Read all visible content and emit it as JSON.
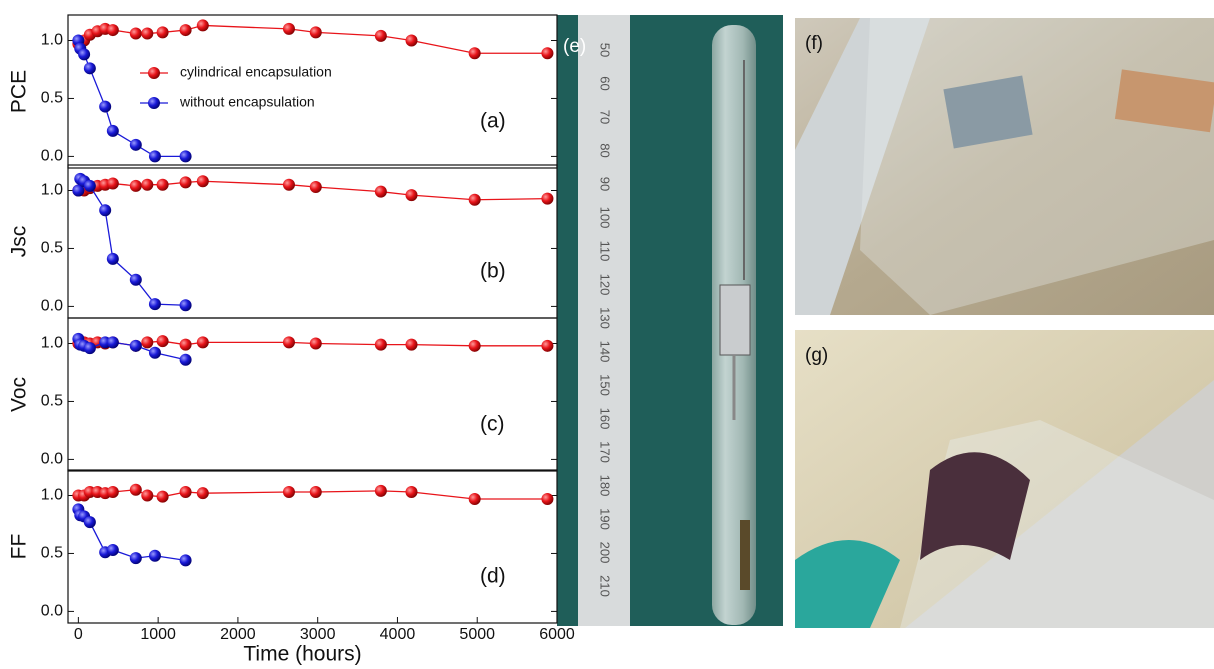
{
  "chart_data": [
    {
      "type": "line",
      "ylabel": "PCE",
      "annotation": "(a)",
      "legend": "top-center",
      "xlim": [
        -130,
        6000
      ],
      "ylim": [
        -0.1,
        1.22
      ],
      "yticks": [
        {
          "value": 0,
          "label": "0.0"
        },
        {
          "value": 0.5,
          "label": "0.5"
        },
        {
          "value": 1,
          "label": "1.0"
        }
      ],
      "series": [
        {
          "name": "cylindrical encapsulation",
          "color": "#e8141a",
          "x": [
            0,
            72,
            144,
            240,
            336,
            432,
            720,
            864,
            1056,
            1344,
            1560,
            2640,
            2976,
            3792,
            4176,
            4968,
            5880
          ],
          "values": [
            0.97,
            1.0,
            1.05,
            1.08,
            1.1,
            1.09,
            1.06,
            1.06,
            1.07,
            1.09,
            1.13,
            1.1,
            1.07,
            1.04,
            1.0,
            0.89,
            0.89
          ]
        },
        {
          "name": "without encapsulation",
          "color": "#1a1ad8",
          "x": [
            0,
            24,
            72,
            144,
            336,
            432,
            720,
            960,
            1344
          ],
          "values": [
            1.0,
            0.93,
            0.88,
            0.76,
            0.43,
            0.22,
            0.1,
            0.0,
            0.0
          ]
        }
      ]
    },
    {
      "type": "line",
      "ylabel": "Jsc",
      "annotation": "(b)",
      "xlim": [
        -130,
        6000
      ],
      "ylim": [
        -0.1,
        1.22
      ],
      "yticks": [
        {
          "value": 0,
          "label": "0.0"
        },
        {
          "value": 0.5,
          "label": "0.5"
        },
        {
          "value": 1,
          "label": "1.0"
        }
      ],
      "series": [
        {
          "color": "#e8141a",
          "x": [
            0,
            72,
            144,
            240,
            336,
            432,
            720,
            864,
            1056,
            1344,
            1560,
            2640,
            2976,
            3792,
            4176,
            4968,
            5880
          ],
          "values": [
            1.0,
            1.0,
            1.02,
            1.04,
            1.05,
            1.06,
            1.04,
            1.05,
            1.05,
            1.07,
            1.08,
            1.05,
            1.03,
            0.99,
            0.96,
            0.92,
            0.93
          ]
        },
        {
          "color": "#1a1ad8",
          "x": [
            0,
            24,
            72,
            144,
            336,
            432,
            720,
            960,
            1344
          ],
          "values": [
            1.0,
            1.1,
            1.08,
            1.04,
            0.83,
            0.41,
            0.23,
            0.02,
            0.01
          ]
        }
      ]
    },
    {
      "type": "line",
      "ylabel": "Voc",
      "annotation": "(c)",
      "xlim": [
        -130,
        6000
      ],
      "ylim": [
        -0.1,
        1.22
      ],
      "yticks": [
        {
          "value": 0,
          "label": "0.0"
        },
        {
          "value": 0.5,
          "label": "0.5"
        },
        {
          "value": 1,
          "label": "1.0"
        }
      ],
      "series": [
        {
          "color": "#e8141a",
          "x": [
            0,
            72,
            144,
            240,
            336,
            432,
            720,
            864,
            1056,
            1344,
            1560,
            2640,
            2976,
            3792,
            4176,
            4968,
            5880
          ],
          "values": [
            1.0,
            1.01,
            1.0,
            1.01,
            1.0,
            1.01,
            0.98,
            1.01,
            1.02,
            0.99,
            1.01,
            1.01,
            1.0,
            0.99,
            0.99,
            0.98,
            0.98
          ]
        },
        {
          "color": "#1a1ad8",
          "x": [
            0,
            24,
            72,
            144,
            336,
            432,
            720,
            960,
            1344
          ],
          "values": [
            1.04,
            0.99,
            0.98,
            0.96,
            1.01,
            1.01,
            0.98,
            0.92,
            0.86
          ]
        }
      ]
    },
    {
      "type": "line",
      "ylabel": "FF",
      "annotation": "(d)",
      "xlabel": "Time (hours)",
      "xlim": [
        -130,
        6000
      ],
      "ylim": [
        -0.1,
        1.22
      ],
      "xticks": [
        0,
        1000,
        2000,
        3000,
        4000,
        5000,
        6000
      ],
      "yticks": [
        {
          "value": 0,
          "label": "0.0"
        },
        {
          "value": 0.5,
          "label": "0.5"
        },
        {
          "value": 1,
          "label": "1.0"
        }
      ],
      "series": [
        {
          "color": "#e8141a",
          "x": [
            0,
            72,
            144,
            240,
            336,
            432,
            720,
            864,
            1056,
            1344,
            1560,
            2640,
            2976,
            3792,
            4176,
            4968,
            5880
          ],
          "values": [
            1.0,
            1.0,
            1.03,
            1.03,
            1.02,
            1.03,
            1.05,
            1.0,
            0.99,
            1.03,
            1.02,
            1.03,
            1.03,
            1.04,
            1.03,
            0.97,
            0.97
          ]
        },
        {
          "color": "#1a1ad8",
          "x": [
            0,
            24,
            72,
            144,
            336,
            432,
            720,
            960,
            1344
          ],
          "values": [
            0.88,
            0.83,
            0.82,
            0.77,
            0.51,
            0.53,
            0.46,
            0.48,
            0.44
          ]
        }
      ]
    }
  ],
  "photos": {
    "labels": [
      "(e)",
      "(f)",
      "(g)"
    ],
    "ruler": [
      "50",
      "60",
      "70",
      "80",
      "90",
      "100",
      "110",
      "120",
      "130",
      "140",
      "150",
      "160",
      "170",
      "180",
      "190",
      "200",
      "210"
    ]
  }
}
